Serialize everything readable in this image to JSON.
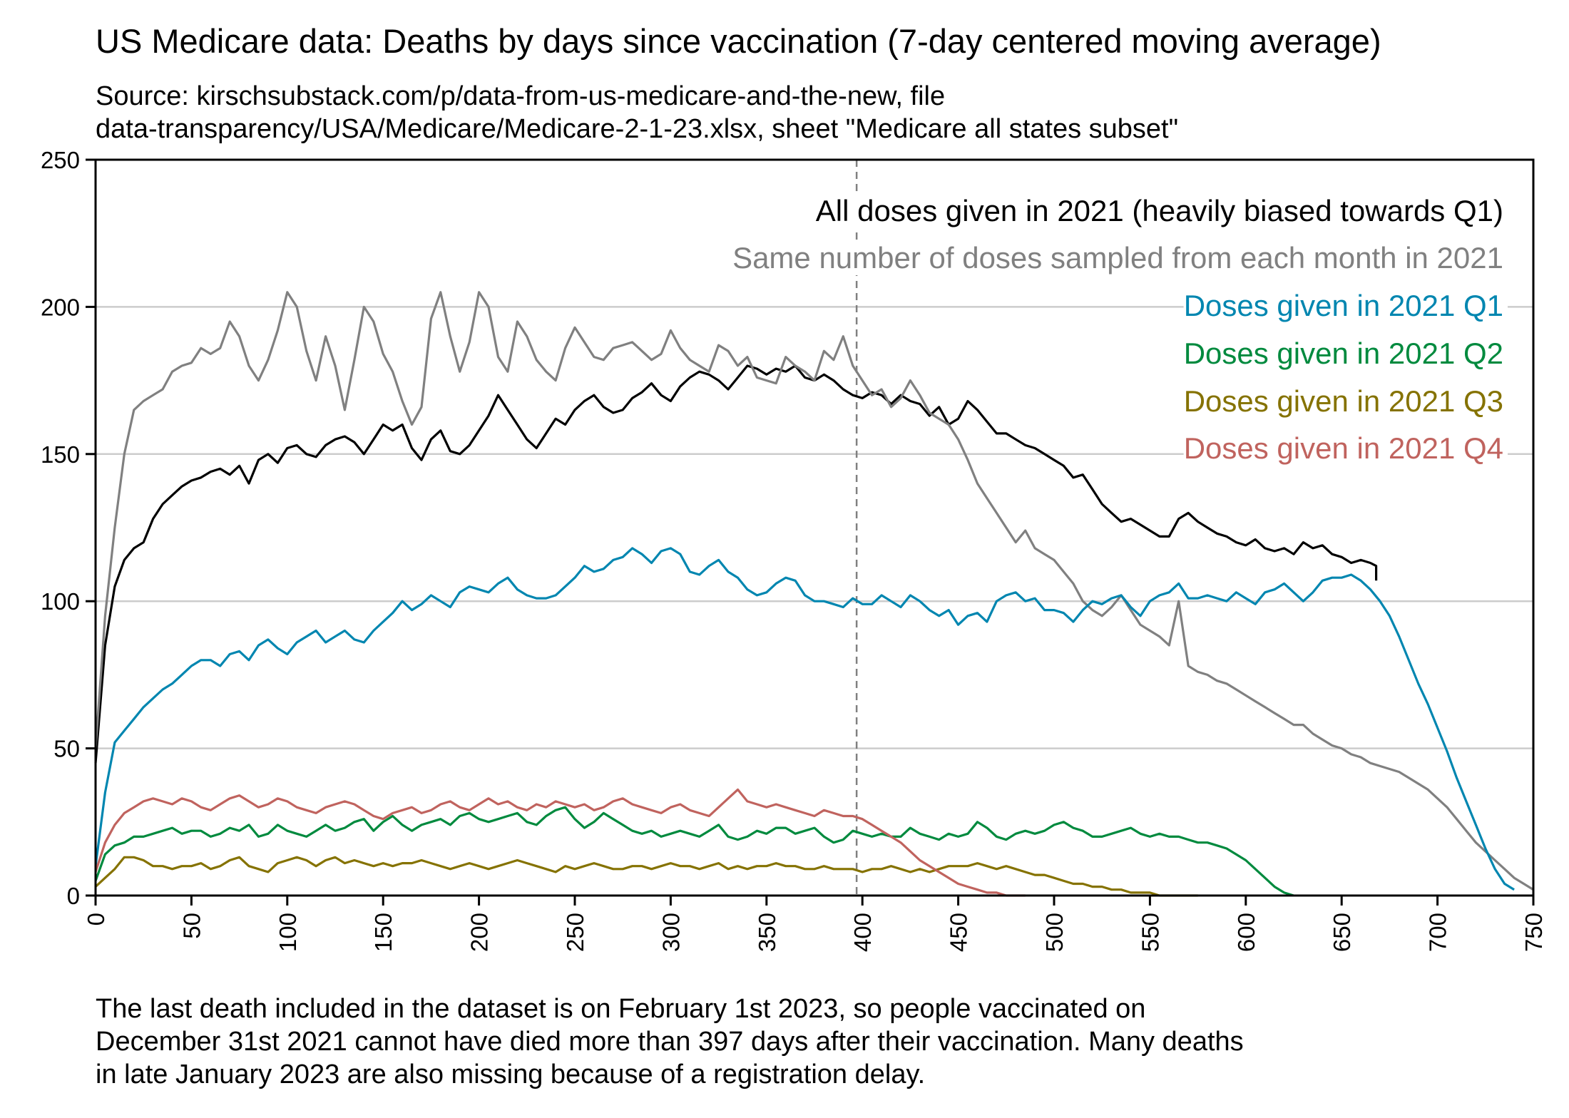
{
  "title": "US Medicare data: Deaths by days since vaccination (7-day centered moving average)",
  "subtitle_lines": [
    "Source: kirschsubstack.com/p/data-from-us-medicare-and-the-new, file",
    "data-transparency/USA/Medicare/Medicare-2-1-23.xlsx, sheet \"Medicare all states subset\""
  ],
  "footnote_lines": [
    "The last death included in the dataset is on February 1st 2023, so people vaccinated on",
    "December 31st 2021 cannot have died more than 397 days after their vaccination. Many deaths",
    "in late January 2023 are also missing because of a registration delay."
  ],
  "chart_data": {
    "type": "line",
    "title": "US Medicare data: Deaths by days since vaccination (7-day centered moving average)",
    "xlabel": "",
    "ylabel": "",
    "xlim": [
      0,
      750
    ],
    "ylim": [
      0,
      250
    ],
    "xticks": [
      0,
      50,
      100,
      150,
      200,
      250,
      300,
      350,
      400,
      450,
      500,
      550,
      600,
      650,
      700,
      750
    ],
    "yticks": [
      0,
      50,
      100,
      150,
      200,
      250
    ],
    "grid": "horizontal",
    "legend_position": "top-right",
    "vline": {
      "x": 397,
      "style": "dashed",
      "color": "#808080"
    },
    "x_step": 5,
    "series": [
      {
        "name": "All doses given in 2021 (heavily biased towards Q1)",
        "color": "#000000",
        "x_start": 0,
        "values": [
          45,
          85,
          105,
          114,
          118,
          120,
          128,
          133,
          136,
          139,
          141,
          142,
          144,
          145,
          143,
          146,
          140,
          148,
          150,
          147,
          152,
          153,
          150,
          149,
          153,
          155,
          156,
          154,
          150,
          155,
          160,
          158,
          160,
          152,
          148,
          155,
          158,
          151,
          150,
          153,
          158,
          163,
          170,
          165,
          160,
          155,
          152,
          157,
          162,
          160,
          165,
          168,
          170,
          166,
          164,
          165,
          169,
          171,
          174,
          170,
          168,
          173,
          176,
          178,
          177,
          175,
          172,
          176,
          180,
          179,
          177,
          179,
          178,
          180,
          176,
          175,
          177,
          175,
          172,
          170,
          169,
          171,
          170,
          167,
          170,
          168,
          167,
          163,
          166,
          160,
          162,
          168,
          165,
          161,
          157,
          157,
          155,
          153,
          152,
          150,
          148,
          146,
          142,
          143,
          138,
          133,
          130,
          127,
          128,
          126,
          124,
          122,
          122,
          128,
          130,
          127,
          125,
          123,
          122,
          120,
          119,
          121,
          118,
          117,
          118,
          116,
          120,
          118,
          119,
          116,
          115,
          113,
          114,
          113,
          112,
          111,
          110,
          109,
          108,
          107
        ],
        "x_end": 668
      },
      {
        "name": "Same number of doses sampled from each month in 2021",
        "color": "#808080",
        "x_start": 0,
        "values": [
          50,
          95,
          125,
          150,
          165,
          168,
          170,
          172,
          178,
          180,
          181,
          186,
          184,
          186,
          195,
          190,
          180,
          175,
          182,
          192,
          205,
          200,
          185,
          175,
          190,
          180,
          165,
          182,
          200,
          195,
          184,
          178,
          168,
          160,
          166,
          196,
          205,
          190,
          178,
          188,
          205,
          200,
          183,
          178,
          195,
          190,
          182,
          178,
          175,
          186,
          193,
          188,
          183,
          182,
          186,
          187,
          188,
          185,
          182,
          184,
          192,
          186,
          182,
          180,
          178,
          187,
          185,
          180,
          183,
          176,
          175,
          174,
          183,
          180,
          178,
          175,
          185,
          182,
          190,
          180,
          175,
          170,
          172,
          166,
          169,
          175,
          170,
          164,
          162,
          160,
          155,
          148,
          140,
          135,
          130,
          125,
          120,
          124,
          118,
          116,
          114,
          110,
          106,
          100,
          97,
          95,
          98,
          102,
          97,
          92,
          90,
          88,
          85,
          100,
          78,
          76,
          75,
          73,
          72,
          70,
          68,
          66,
          64,
          62,
          60,
          58,
          58,
          55,
          53,
          51,
          50,
          48,
          47,
          45,
          44,
          43,
          42,
          40,
          38,
          36,
          33,
          30,
          26,
          22,
          18,
          15,
          12,
          9,
          6,
          4,
          2
        ],
        "x_end": 750
      },
      {
        "name": "Doses given in 2021 Q1",
        "color": "#0086b0",
        "x_start": 0,
        "values": [
          10,
          35,
          52,
          56,
          60,
          64,
          67,
          70,
          72,
          75,
          78,
          80,
          80,
          78,
          82,
          83,
          80,
          85,
          87,
          84,
          82,
          86,
          88,
          90,
          86,
          88,
          90,
          87,
          86,
          90,
          93,
          96,
          100,
          97,
          99,
          102,
          100,
          98,
          103,
          105,
          104,
          103,
          106,
          108,
          104,
          102,
          101,
          101,
          102,
          105,
          108,
          112,
          110,
          111,
          114,
          115,
          118,
          116,
          113,
          117,
          118,
          116,
          110,
          109,
          112,
          114,
          110,
          108,
          104,
          102,
          103,
          106,
          108,
          107,
          102,
          100,
          100,
          99,
          98,
          101,
          99,
          99,
          102,
          100,
          98,
          102,
          100,
          97,
          95,
          97,
          92,
          95,
          96,
          93,
          100,
          102,
          103,
          100,
          101,
          97,
          97,
          96,
          93,
          97,
          100,
          99,
          101,
          102,
          98,
          95,
          100,
          102,
          103,
          106,
          101,
          101,
          102,
          101,
          100,
          103,
          101,
          99,
          103,
          104,
          106,
          103,
          100,
          103,
          107,
          108,
          108,
          109,
          107,
          104,
          100,
          95,
          88,
          80,
          72,
          65,
          57,
          49,
          40,
          32,
          24,
          16,
          9,
          4,
          2
        ],
        "x_end": 750
      },
      {
        "name": "Doses given in 2021 Q2",
        "color": "#008a3e",
        "x_start": 0,
        "values": [
          5,
          14,
          17,
          18,
          20,
          20,
          21,
          22,
          23,
          21,
          22,
          22,
          20,
          21,
          23,
          22,
          24,
          20,
          21,
          24,
          22,
          21,
          20,
          22,
          24,
          22,
          23,
          25,
          26,
          22,
          25,
          27,
          24,
          22,
          24,
          25,
          26,
          24,
          27,
          28,
          26,
          25,
          26,
          27,
          28,
          25,
          24,
          27,
          29,
          30,
          26,
          23,
          25,
          28,
          26,
          24,
          22,
          21,
          22,
          20,
          21,
          22,
          21,
          20,
          22,
          24,
          20,
          19,
          20,
          22,
          21,
          23,
          23,
          21,
          22,
          23,
          20,
          18,
          19,
          22,
          21,
          20,
          21,
          20,
          20,
          23,
          21,
          20,
          19,
          21,
          20,
          21,
          25,
          23,
          20,
          19,
          21,
          22,
          21,
          22,
          24,
          25,
          23,
          22,
          20,
          20,
          21,
          22,
          23,
          21,
          20,
          21,
          20,
          20,
          19,
          18,
          18,
          17,
          16,
          14,
          12,
          9,
          6,
          3,
          1,
          0
        ],
        "x_end": 670
      },
      {
        "name": "Doses given in 2021 Q3",
        "color": "#857200",
        "x_start": 0,
        "values": [
          3,
          6,
          9,
          13,
          13,
          12,
          10,
          10,
          9,
          10,
          10,
          11,
          9,
          10,
          12,
          13,
          10,
          9,
          8,
          11,
          12,
          13,
          12,
          10,
          12,
          13,
          11,
          12,
          11,
          10,
          11,
          10,
          11,
          11,
          12,
          11,
          10,
          9,
          10,
          11,
          10,
          9,
          10,
          11,
          12,
          11,
          10,
          9,
          8,
          10,
          9,
          10,
          11,
          10,
          9,
          9,
          10,
          10,
          9,
          10,
          11,
          10,
          10,
          9,
          10,
          11,
          9,
          10,
          9,
          10,
          10,
          11,
          10,
          10,
          9,
          9,
          10,
          9,
          9,
          9,
          8,
          9,
          9,
          10,
          9,
          8,
          9,
          8,
          9,
          10,
          10,
          10,
          11,
          10,
          9,
          10,
          9,
          8,
          7,
          7,
          6,
          5,
          4,
          4,
          3,
          3,
          2,
          2,
          1,
          1,
          1,
          0,
          0,
          0,
          0,
          0
        ],
        "x_end": 575
      },
      {
        "name": "Doses given in 2021 Q4",
        "color": "#c0635e",
        "x_start": 0,
        "values": [
          8,
          18,
          24,
          28,
          30,
          32,
          33,
          32,
          31,
          33,
          32,
          30,
          29,
          31,
          33,
          34,
          32,
          30,
          31,
          33,
          32,
          30,
          29,
          28,
          30,
          31,
          32,
          31,
          29,
          27,
          26,
          28,
          29,
          30,
          28,
          29,
          31,
          32,
          30,
          29,
          31,
          33,
          31,
          32,
          30,
          29,
          31,
          30,
          32,
          31,
          30,
          31,
          29,
          30,
          32,
          33,
          31,
          30,
          29,
          28,
          30,
          31,
          29,
          28,
          27,
          30,
          33,
          36,
          32,
          31,
          30,
          31,
          30,
          29,
          28,
          27,
          29,
          28,
          27,
          27,
          26,
          24,
          22,
          20,
          18,
          15,
          12,
          10,
          8,
          6,
          4,
          3,
          2,
          1,
          1,
          0,
          0,
          0
        ],
        "x_end": 485
      }
    ]
  }
}
